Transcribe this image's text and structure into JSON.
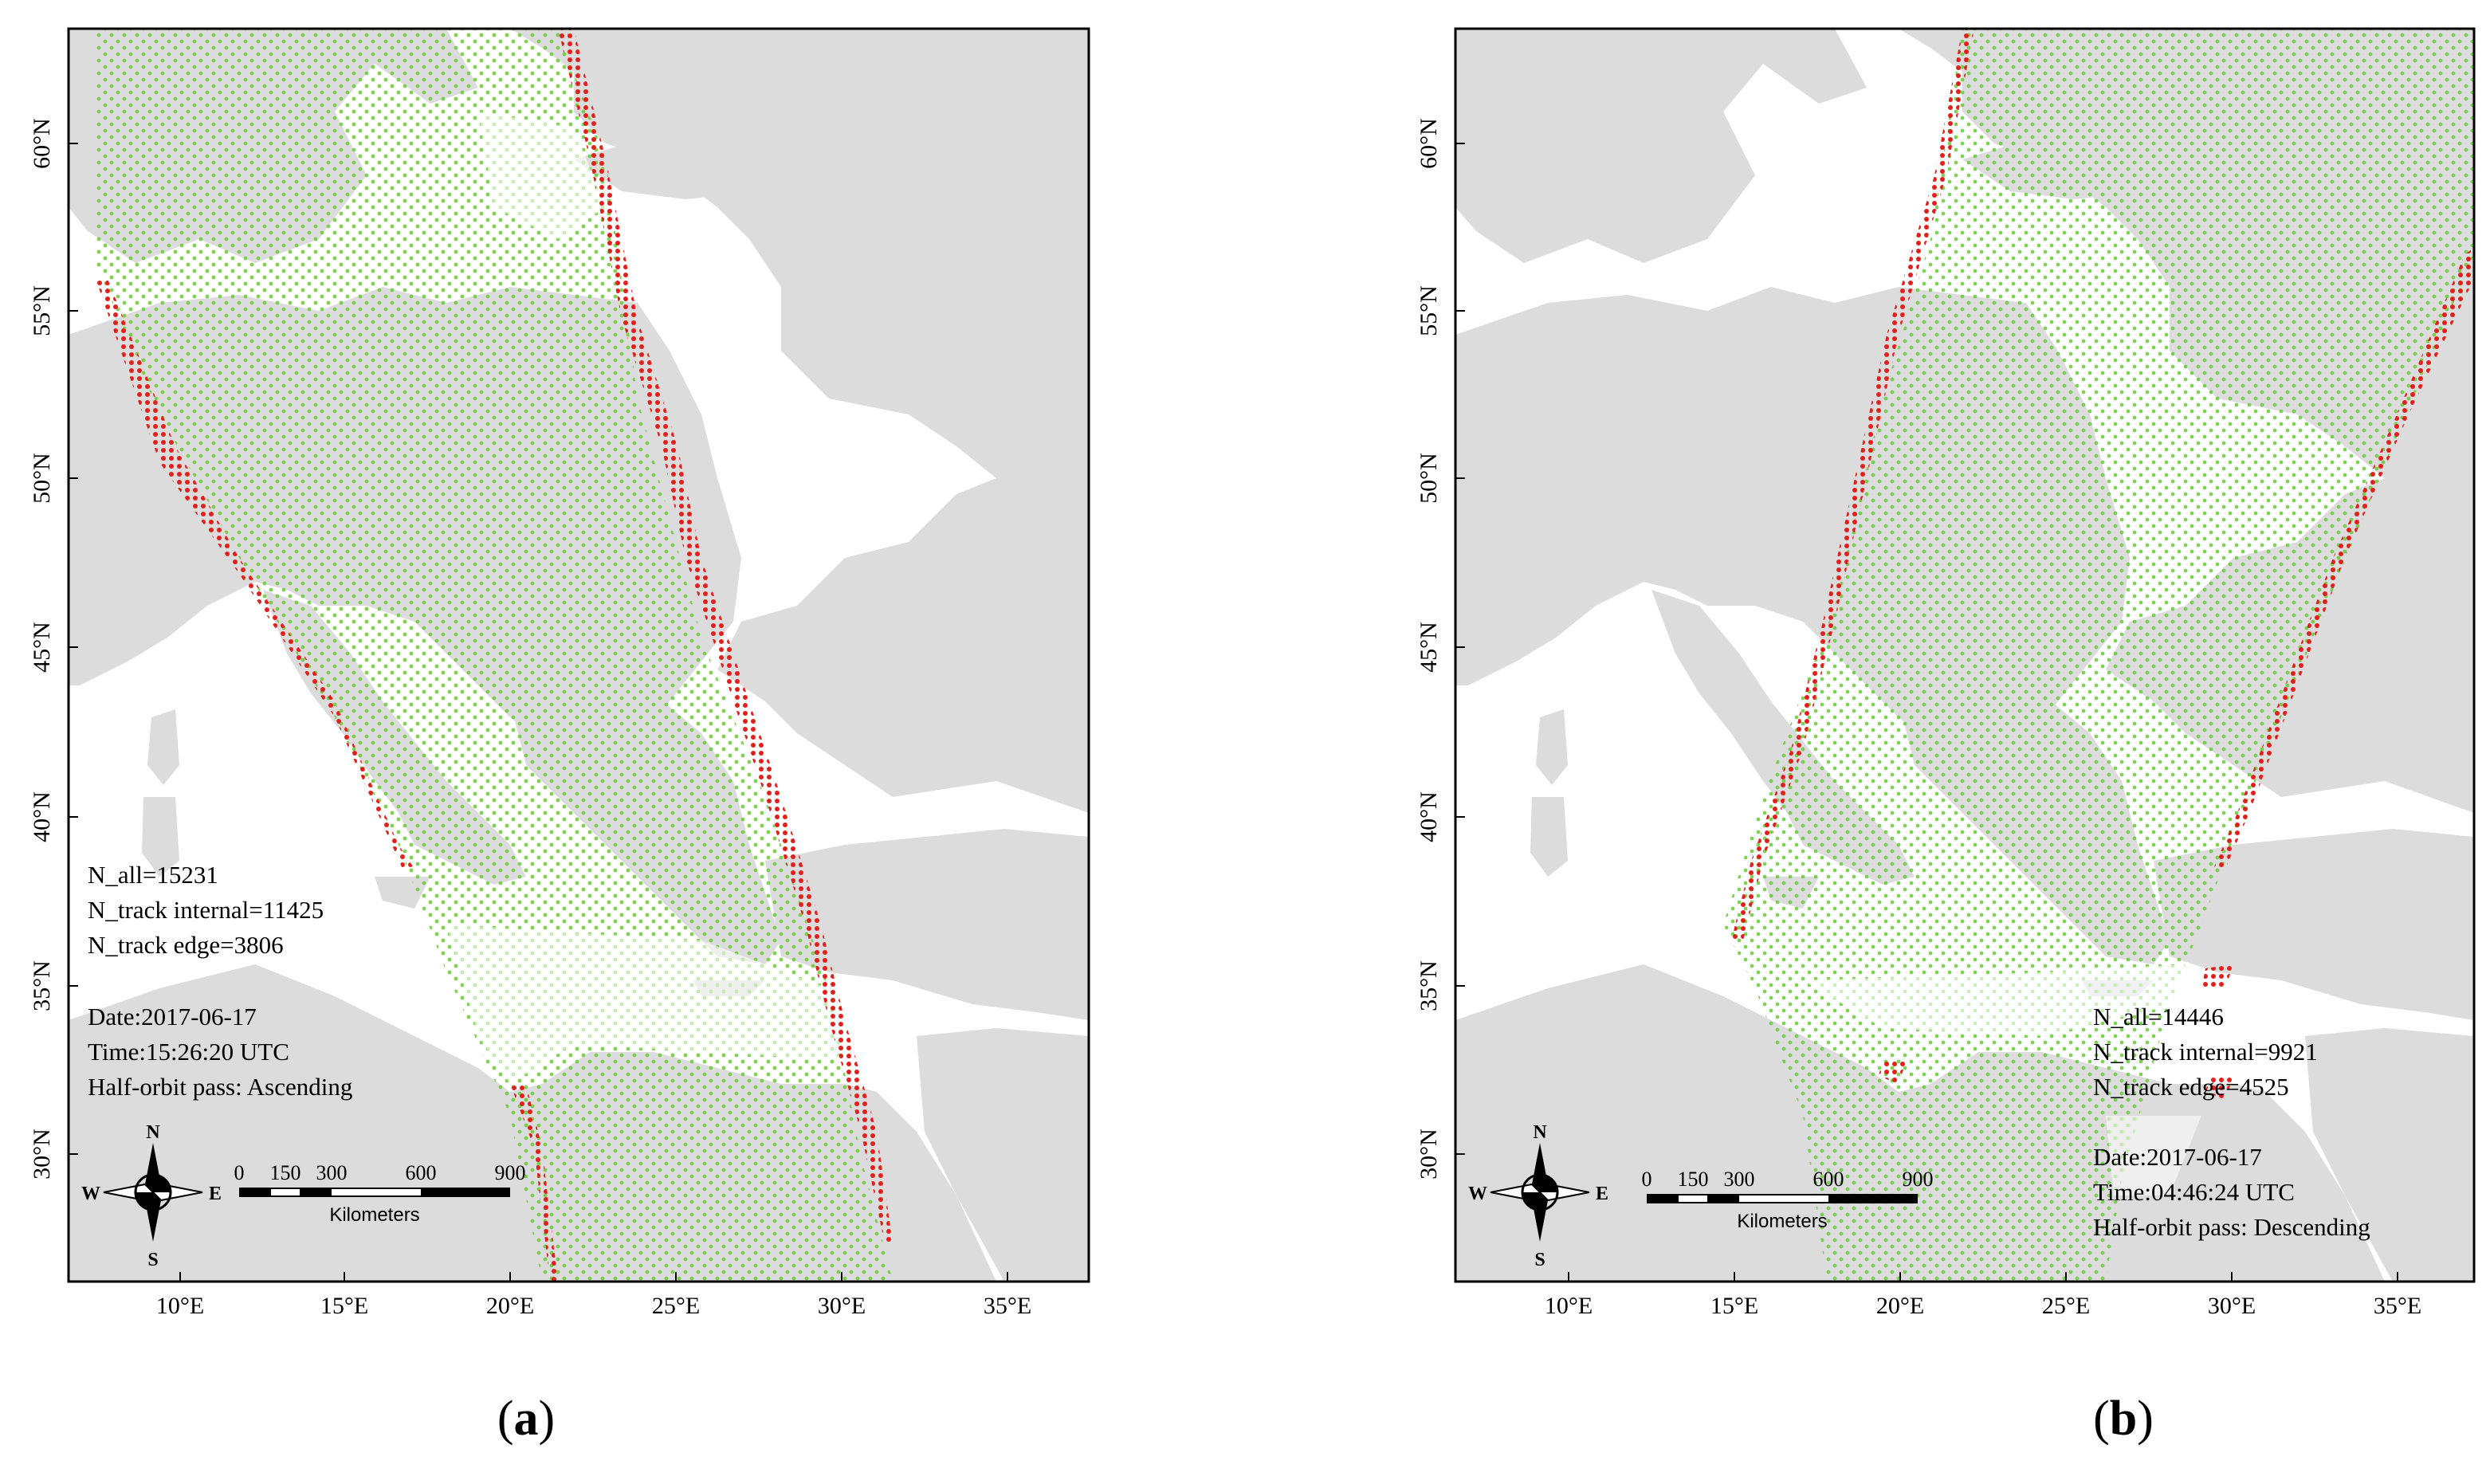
{
  "panels": [
    {
      "id": "a",
      "caption_letter": "a",
      "stats": [
        "N_all=15231",
        "N_track internal=11425",
        "N_track edge=3806"
      ],
      "meta": [
        "Date:2017-06-17",
        "Time:15:26:20 UTC",
        "Half-orbit pass: Ascending"
      ],
      "x_ticks": [
        "10°E",
        "15°E",
        "20°E",
        "25°E",
        "30°E",
        "35°E"
      ],
      "y_ticks": [
        "60°N",
        "55°N",
        "50°N",
        "45°N",
        "40°N",
        "35°N",
        "30°N"
      ],
      "scale_bar": {
        "ticks": [
          "0",
          "150",
          "300",
          "600",
          "900"
        ],
        "unit": "Kilometers"
      },
      "north_arrow": {
        "n": "N",
        "s": "S",
        "e": "E",
        "w": "W"
      }
    },
    {
      "id": "b",
      "caption_letter": "b",
      "stats": [
        "N_all=14446",
        "N_track internal=9921",
        "N_track edge=4525"
      ],
      "meta": [
        "Date:2017-06-17",
        "Time:04:46:24 UTC",
        "Half-orbit pass: Descending"
      ],
      "x_ticks": [
        "10°E",
        "15°E",
        "20°E",
        "25°E",
        "30°E",
        "35°E"
      ],
      "y_ticks": [
        "60°N",
        "55°N",
        "50°N",
        "45°N",
        "40°N",
        "35°N",
        "30°N"
      ],
      "scale_bar": {
        "ticks": [
          "0",
          "150",
          "300",
          "600",
          "900"
        ],
        "unit": "Kilometers"
      },
      "north_arrow": {
        "n": "N",
        "s": "S",
        "e": "E",
        "w": "W"
      }
    }
  ],
  "colors": {
    "land": "#dcdcdc",
    "sea": "#ffffff",
    "internal_points": "#66cc33",
    "edge_points": "#e0201b"
  }
}
